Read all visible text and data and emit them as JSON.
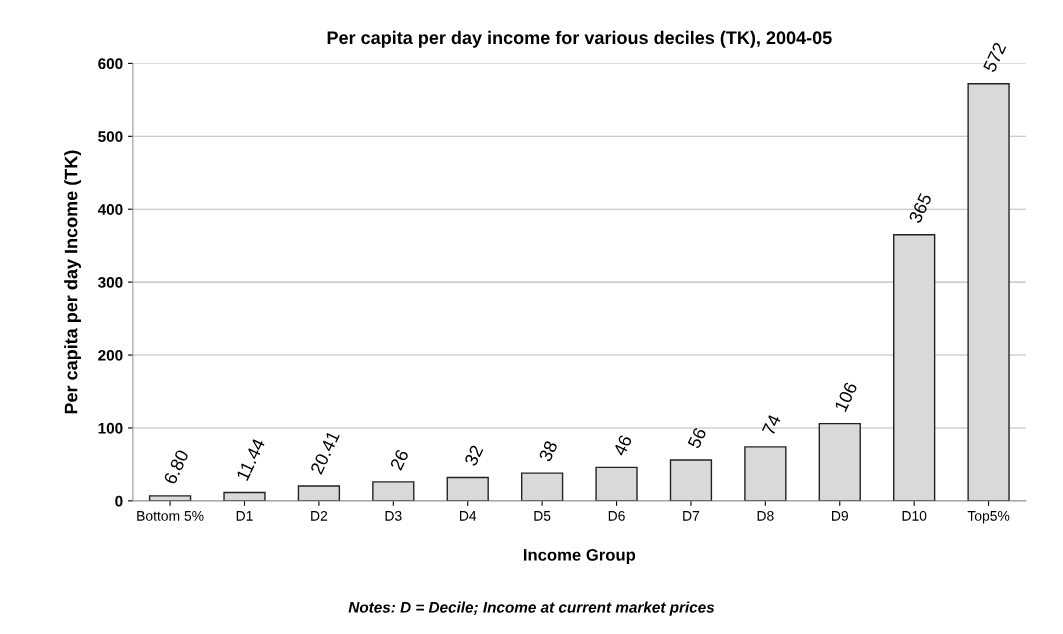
{
  "chart_data": {
    "type": "bar",
    "title": "Per capita per day income for various deciles (TK), 2004-05",
    "xlabel": "Income Group",
    "ylabel": "Per capita per day Income (TK)",
    "annotations": [
      "Notes: D = Decile; Income at current market prices"
    ],
    "categories": [
      "Bottom 5%",
      "D1",
      "D2",
      "D3",
      "D4",
      "D5",
      "D6",
      "D7",
      "D8",
      "D9",
      "D10",
      "Top5%"
    ],
    "values": [
      6.8,
      11.44,
      20.41,
      26,
      32,
      38,
      46,
      56,
      74,
      106,
      365,
      572
    ],
    "value_labels": [
      "6.80",
      "11.44",
      "20.41",
      "26",
      "32",
      "38",
      "46",
      "56",
      "74",
      "106",
      "365",
      "572"
    ],
    "color": "#d9d9d9",
    "ylim": [
      0,
      600
    ],
    "yticks": [
      0,
      100,
      200,
      300,
      400,
      500,
      600
    ],
    "grid": "y"
  }
}
